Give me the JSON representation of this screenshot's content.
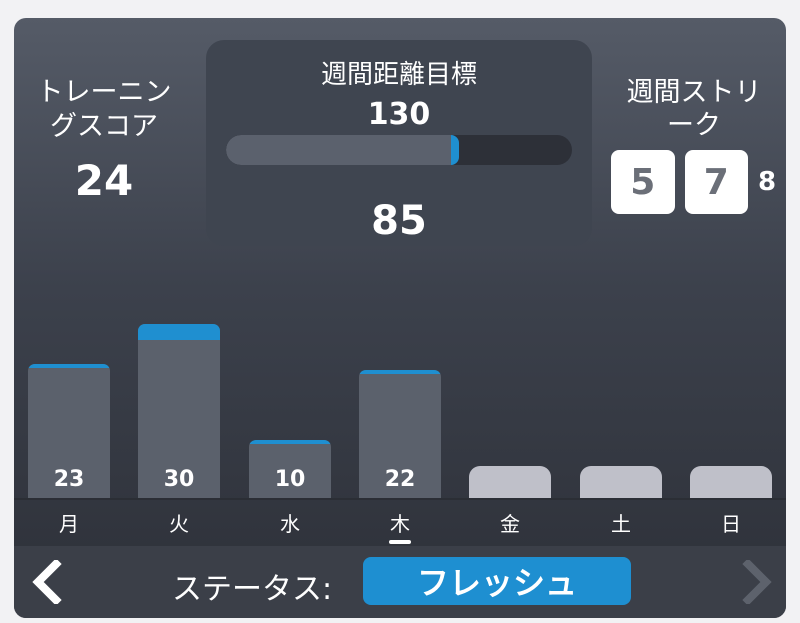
{
  "score": {
    "label": "トレーニングスコア",
    "value": "24"
  },
  "goal": {
    "title": "週間距離目標",
    "target": "130",
    "current": "85",
    "progress": 0.65
  },
  "streak": {
    "label": "週間ストリーク",
    "digits": [
      "5",
      "7"
    ],
    "extra_digit": "8"
  },
  "status": {
    "label": "ステータス:",
    "value": "フレッシュ"
  },
  "colors": {
    "accent": "#1f8fd0",
    "bar": "#5b616c",
    "bar_empty": "#bfc0c9"
  },
  "chart_data": {
    "type": "bar",
    "categories": [
      "月",
      "火",
      "水",
      "木",
      "金",
      "土",
      "日"
    ],
    "values": [
      23,
      30,
      10,
      22,
      null,
      null,
      null
    ],
    "labels": [
      "23",
      "30",
      "10",
      "22",
      "",
      "",
      ""
    ],
    "today_index": 3,
    "ylim": [
      0,
      32
    ]
  }
}
